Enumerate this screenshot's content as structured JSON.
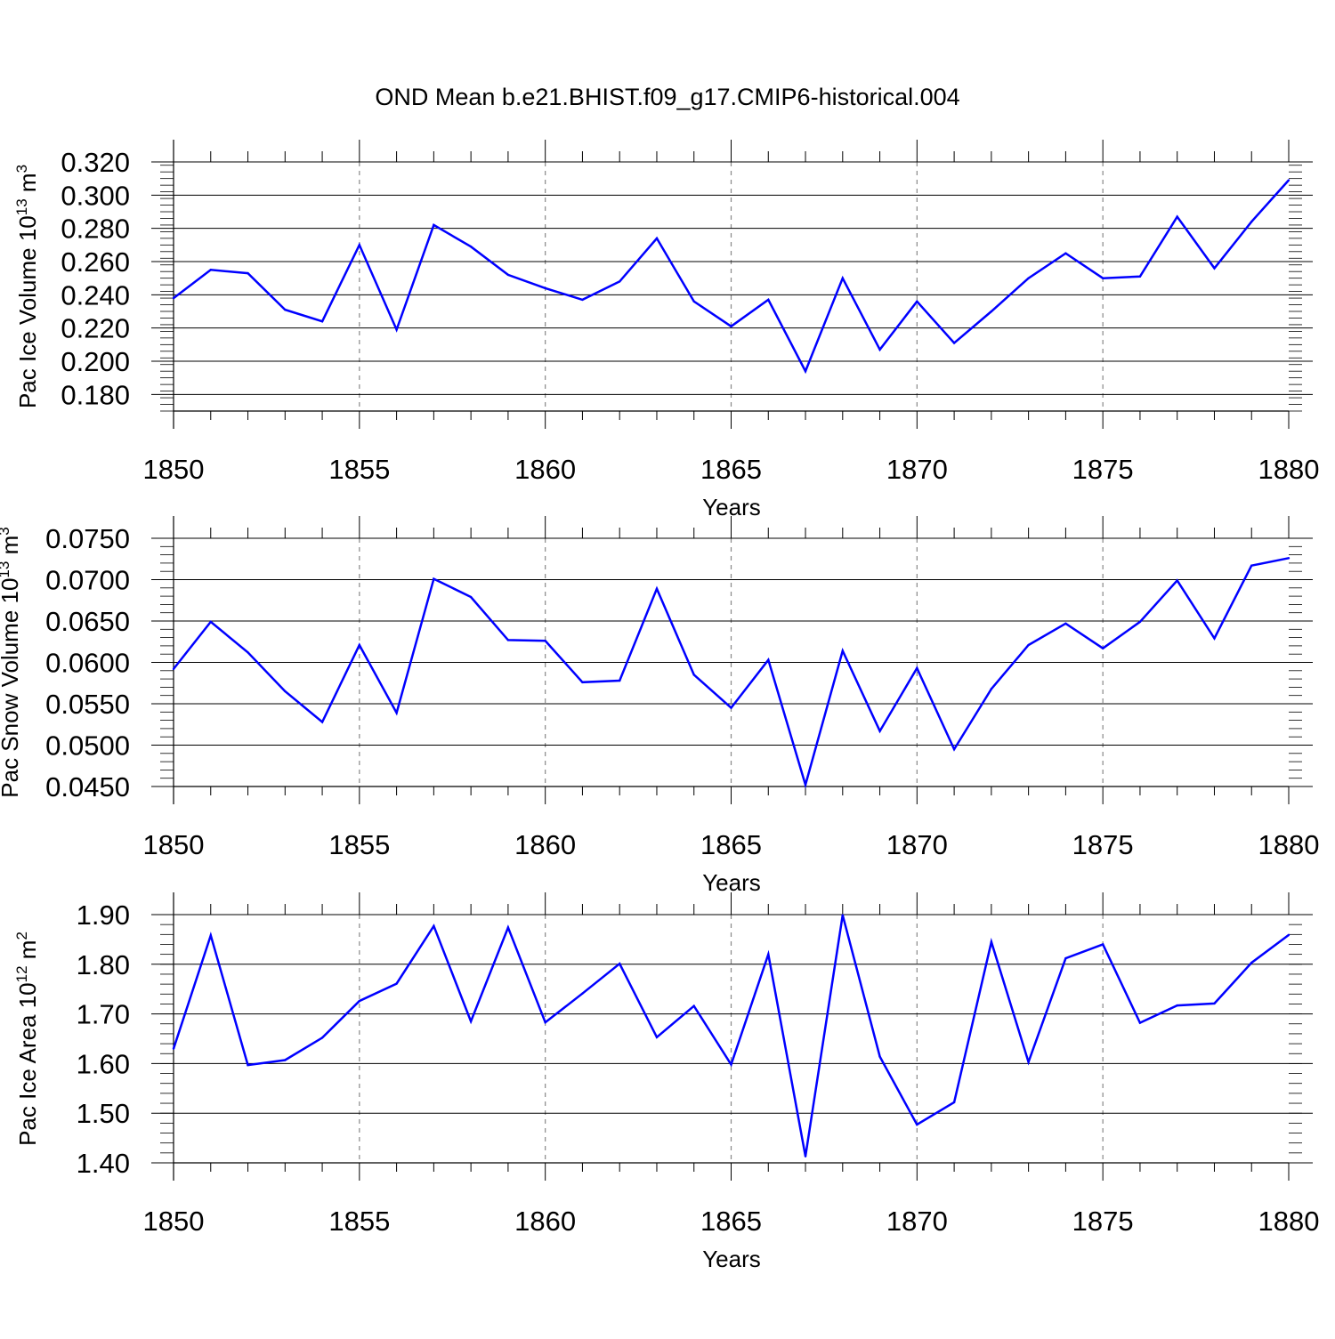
{
  "title": "OND Mean b.e21.BHIST.f09_g17.CMIP6-historical.004",
  "line_color": "#0000ff",
  "grid_color": "#888888",
  "chart_data": [
    {
      "type": "line",
      "ylabel": "Pac Ice Volume 10",
      "ylabel_exp": "13",
      "ylabel_unit": " m",
      "ylabel_unit_exp": "3",
      "xlabel": "Years",
      "xlim": [
        1850,
        1880
      ],
      "ylim": [
        0.17,
        0.32
      ],
      "ytick_values": [
        0.18,
        0.2,
        0.22,
        0.24,
        0.26,
        0.28,
        0.3,
        0.32
      ],
      "ytick_labels": [
        "0.180",
        "0.200",
        "0.220",
        "0.240",
        "0.260",
        "0.280",
        "0.300",
        "0.320"
      ],
      "xtick_values": [
        1850,
        1855,
        1860,
        1865,
        1870,
        1875,
        1880
      ],
      "xtick_labels": [
        "1850",
        "1855",
        "1860",
        "1865",
        "1870",
        "1875",
        "1880"
      ],
      "x": [
        1850,
        1851,
        1852,
        1853,
        1854,
        1855,
        1856,
        1857,
        1858,
        1859,
        1860,
        1861,
        1862,
        1863,
        1864,
        1865,
        1866,
        1867,
        1868,
        1869,
        1870,
        1871,
        1872,
        1873,
        1874,
        1875,
        1876,
        1877,
        1878,
        1879,
        1880
      ],
      "values": [
        0.238,
        0.255,
        0.253,
        0.231,
        0.224,
        0.27,
        0.219,
        0.282,
        0.269,
        0.252,
        0.244,
        0.237,
        0.248,
        0.274,
        0.236,
        0.221,
        0.237,
        0.194,
        0.25,
        0.207,
        0.236,
        0.211,
        0.23,
        0.25,
        0.265,
        0.25,
        0.251,
        0.287,
        0.256,
        0.284,
        0.309
      ]
    },
    {
      "type": "line",
      "ylabel": "Pac Snow Volume 10",
      "ylabel_exp": "13",
      "ylabel_unit": " m",
      "ylabel_unit_exp": "3",
      "xlabel": "Years",
      "xlim": [
        1850,
        1880
      ],
      "ylim": [
        0.045,
        0.075
      ],
      "ytick_values": [
        0.045,
        0.05,
        0.055,
        0.06,
        0.065,
        0.07,
        0.075
      ],
      "ytick_labels": [
        "0.0450",
        "0.0500",
        "0.0550",
        "0.0600",
        "0.0650",
        "0.0700",
        "0.0750"
      ],
      "xtick_values": [
        1850,
        1855,
        1860,
        1865,
        1870,
        1875,
        1880
      ],
      "xtick_labels": [
        "1850",
        "1855",
        "1860",
        "1865",
        "1870",
        "1875",
        "1880"
      ],
      "x": [
        1850,
        1851,
        1852,
        1853,
        1854,
        1855,
        1856,
        1857,
        1858,
        1859,
        1860,
        1861,
        1862,
        1863,
        1864,
        1865,
        1866,
        1867,
        1868,
        1869,
        1870,
        1871,
        1872,
        1873,
        1874,
        1875,
        1876,
        1877,
        1878,
        1879,
        1880
      ],
      "values": [
        0.0592,
        0.0649,
        0.0612,
        0.0565,
        0.0528,
        0.0621,
        0.0539,
        0.0701,
        0.0679,
        0.0627,
        0.0626,
        0.0576,
        0.0578,
        0.0689,
        0.0585,
        0.0545,
        0.0603,
        0.0452,
        0.0614,
        0.0517,
        0.0593,
        0.0495,
        0.0568,
        0.0621,
        0.0647,
        0.0617,
        0.0649,
        0.0699,
        0.0629,
        0.0717,
        0.0726
      ]
    },
    {
      "type": "line",
      "ylabel": "Pac Ice Area 10",
      "ylabel_exp": "12",
      "ylabel_unit": " m",
      "ylabel_unit_exp": "2",
      "xlabel": "Years",
      "xlim": [
        1850,
        1880
      ],
      "ylim": [
        1.4,
        1.9
      ],
      "ytick_values": [
        1.4,
        1.5,
        1.6,
        1.7,
        1.8,
        1.9
      ],
      "ytick_labels": [
        "1.40",
        "1.50",
        "1.60",
        "1.70",
        "1.80",
        "1.90"
      ],
      "xtick_values": [
        1850,
        1855,
        1860,
        1865,
        1870,
        1875,
        1880
      ],
      "xtick_labels": [
        "1850",
        "1855",
        "1860",
        "1865",
        "1870",
        "1875",
        "1880"
      ],
      "x": [
        1850,
        1851,
        1852,
        1853,
        1854,
        1855,
        1856,
        1857,
        1858,
        1859,
        1860,
        1861,
        1862,
        1863,
        1864,
        1865,
        1866,
        1867,
        1868,
        1869,
        1870,
        1871,
        1872,
        1873,
        1874,
        1875,
        1876,
        1877,
        1878,
        1879,
        1880
      ],
      "values": [
        1.63,
        1.858,
        1.597,
        1.607,
        1.652,
        1.726,
        1.761,
        1.877,
        1.685,
        1.874,
        1.683,
        1.741,
        1.801,
        1.653,
        1.716,
        1.598,
        1.82,
        1.413,
        1.899,
        1.614,
        1.477,
        1.522,
        1.845,
        1.603,
        1.812,
        1.84,
        1.682,
        1.717,
        1.721,
        1.803,
        1.859
      ]
    }
  ]
}
